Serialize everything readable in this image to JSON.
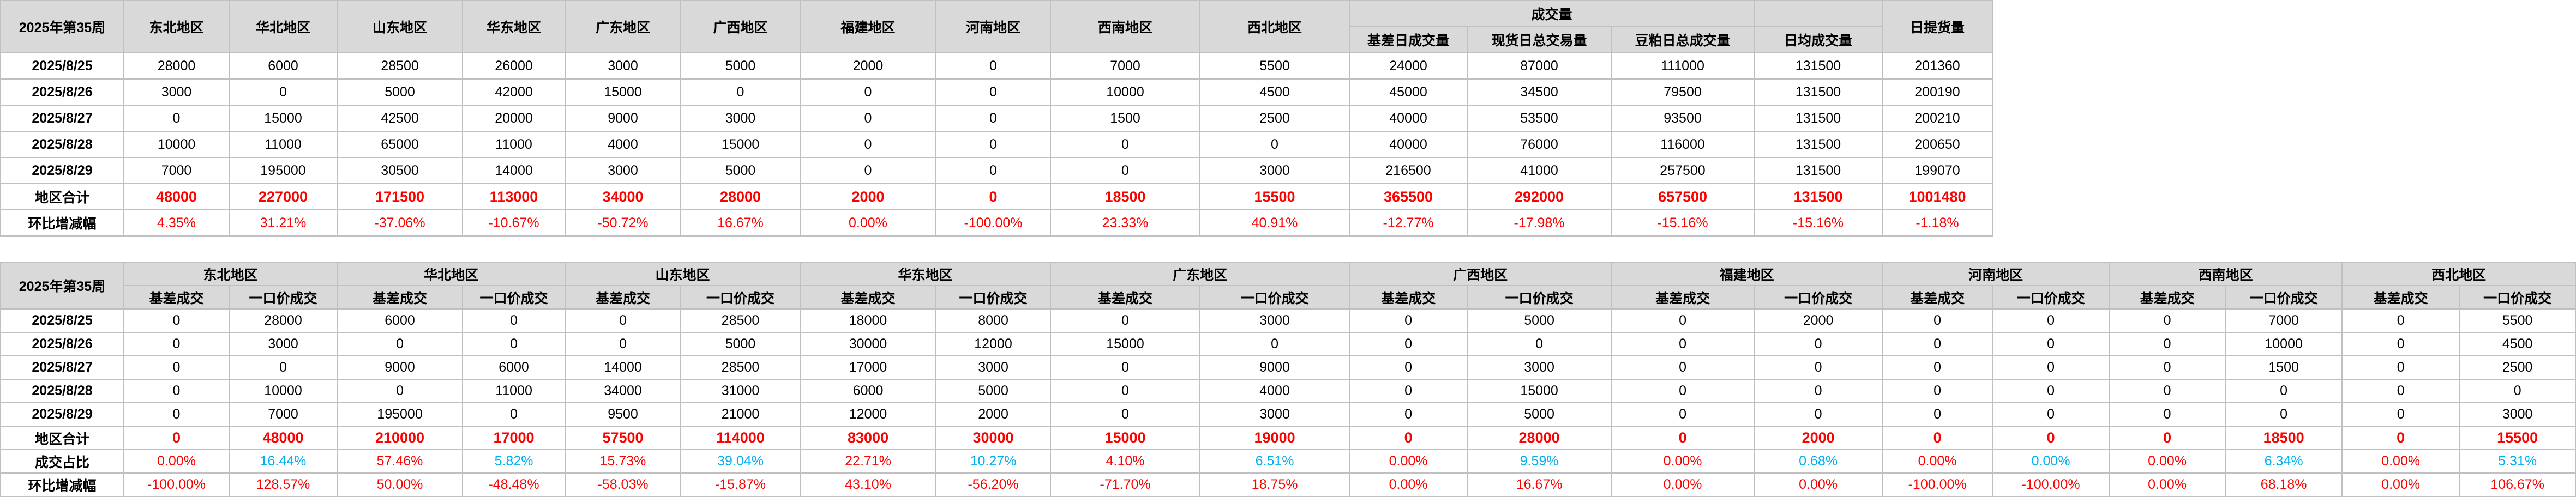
{
  "colors": {
    "header_bg": "#d9d9d9",
    "total": "#ff0000",
    "pct_red": "#ff0000",
    "pct_blue": "#00b0f0",
    "border": "#c0c0c0"
  },
  "table1": {
    "corner": "2025年第35周",
    "region_headers": [
      "东北地区",
      "华北地区",
      "山东地区",
      "华东地区",
      "广东地区",
      "广西地区",
      "福建地区",
      "河南地区",
      "西南地区",
      "西北地区"
    ],
    "volume_group": "成交量",
    "volume_headers": [
      "基差日成交量",
      "现货日总交易量",
      "豆粕日总成交量"
    ],
    "avg_header": "日均成交量",
    "pickup_header": "日提货量",
    "rows": [
      {
        "label": "2025/8/25",
        "values": [
          "28000",
          "6000",
          "28500",
          "26000",
          "3000",
          "5000",
          "2000",
          "0",
          "7000",
          "5500",
          "24000",
          "87000",
          "111000",
          "131500",
          "201360"
        ]
      },
      {
        "label": "2025/8/26",
        "values": [
          "3000",
          "0",
          "5000",
          "42000",
          "15000",
          "0",
          "0",
          "0",
          "10000",
          "4500",
          "45000",
          "34500",
          "79500",
          "131500",
          "200190"
        ]
      },
      {
        "label": "2025/8/27",
        "values": [
          "0",
          "15000",
          "42500",
          "20000",
          "9000",
          "3000",
          "0",
          "0",
          "1500",
          "2500",
          "40000",
          "53500",
          "93500",
          "131500",
          "200210"
        ]
      },
      {
        "label": "2025/8/28",
        "values": [
          "10000",
          "11000",
          "65000",
          "11000",
          "4000",
          "15000",
          "0",
          "0",
          "0",
          "0",
          "40000",
          "76000",
          "116000",
          "131500",
          "200650"
        ]
      },
      {
        "label": "2025/8/29",
        "values": [
          "7000",
          "195000",
          "30500",
          "14000",
          "3000",
          "5000",
          "0",
          "0",
          "0",
          "3000",
          "216500",
          "41000",
          "257500",
          "131500",
          "199070"
        ]
      }
    ],
    "total": {
      "label": "地区合计",
      "values": [
        "48000",
        "227000",
        "171500",
        "113000",
        "34000",
        "28000",
        "2000",
        "0",
        "18500",
        "15500",
        "365500",
        "292000",
        "657500",
        "131500",
        "1001480"
      ]
    },
    "change": {
      "label": "环比增减幅",
      "values": [
        "4.35%",
        "31.21%",
        "-37.06%",
        "-10.67%",
        "-50.72%",
        "16.67%",
        "0.00%",
        "-100.00%",
        "23.33%",
        "40.91%",
        "-12.77%",
        "-17.98%",
        "-15.16%",
        "-15.16%",
        "-1.18%"
      ]
    }
  },
  "table2": {
    "corner": "2025年第35周",
    "regions": [
      "东北地区",
      "华北地区",
      "山东地区",
      "华东地区",
      "广东地区",
      "广西地区",
      "福建地区",
      "河南地区",
      "西南地区",
      "西北地区"
    ],
    "sub_headers": [
      "基差成交",
      "一口价成交"
    ],
    "rows": [
      {
        "label": "2025/8/25",
        "values": [
          "0",
          "28000",
          "6000",
          "0",
          "0",
          "28500",
          "18000",
          "8000",
          "0",
          "3000",
          "0",
          "5000",
          "0",
          "2000",
          "0",
          "0",
          "0",
          "7000",
          "0",
          "5500"
        ]
      },
      {
        "label": "2025/8/26",
        "values": [
          "0",
          "3000",
          "0",
          "0",
          "0",
          "5000",
          "30000",
          "12000",
          "15000",
          "0",
          "0",
          "0",
          "0",
          "0",
          "0",
          "0",
          "0",
          "10000",
          "0",
          "4500"
        ]
      },
      {
        "label": "2025/8/27",
        "values": [
          "0",
          "0",
          "9000",
          "6000",
          "14000",
          "28500",
          "17000",
          "3000",
          "0",
          "9000",
          "0",
          "3000",
          "0",
          "0",
          "0",
          "0",
          "0",
          "1500",
          "0",
          "2500"
        ]
      },
      {
        "label": "2025/8/28",
        "values": [
          "0",
          "10000",
          "0",
          "11000",
          "34000",
          "31000",
          "6000",
          "5000",
          "0",
          "4000",
          "0",
          "15000",
          "0",
          "0",
          "0",
          "0",
          "0",
          "0",
          "0",
          "0"
        ]
      },
      {
        "label": "2025/8/29",
        "values": [
          "0",
          "7000",
          "195000",
          "0",
          "9500",
          "21000",
          "12000",
          "2000",
          "0",
          "3000",
          "0",
          "5000",
          "0",
          "0",
          "0",
          "0",
          "0",
          "0",
          "0",
          "3000"
        ]
      }
    ],
    "total": {
      "label": "地区合计",
      "values": [
        "0",
        "48000",
        "210000",
        "17000",
        "57500",
        "114000",
        "83000",
        "30000",
        "15000",
        "19000",
        "0",
        "28000",
        "0",
        "2000",
        "0",
        "0",
        "0",
        "18500",
        "0",
        "15500"
      ]
    },
    "share": {
      "label": "成交占比",
      "values": [
        "0.00%",
        "16.44%",
        "57.46%",
        "5.82%",
        "15.73%",
        "39.04%",
        "22.71%",
        "10.27%",
        "4.10%",
        "6.51%",
        "0.00%",
        "9.59%",
        "0.00%",
        "0.68%",
        "0.00%",
        "0.00%",
        "0.00%",
        "6.34%",
        "0.00%",
        "5.31%"
      ]
    },
    "change": {
      "label": "环比增减幅",
      "values": [
        "-100.00%",
        "128.57%",
        "50.00%",
        "-48.48%",
        "-58.03%",
        "-15.87%",
        "43.10%",
        "-56.20%",
        "-71.70%",
        "18.75%",
        "0.00%",
        "16.67%",
        "0.00%",
        "0.00%",
        "-100.00%",
        "-100.00%",
        "0.00%",
        "68.18%",
        "0.00%",
        "106.67%"
      ]
    }
  }
}
